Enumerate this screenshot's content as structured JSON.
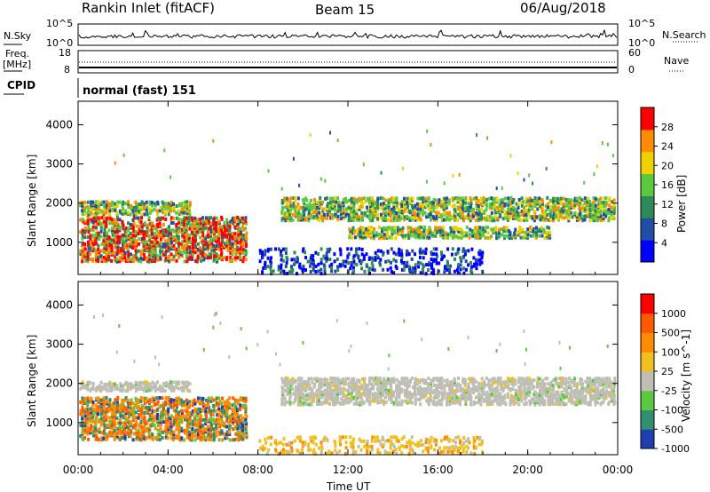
{
  "header": {
    "title": "Rankin Inlet (fitACF)",
    "beam": "Beam 15",
    "date": "06/Aug/2018"
  },
  "noise_panel": {
    "left_label": "N.Sky",
    "right_label": "N.Search",
    "left_ticks": [
      "10^5",
      "10^0"
    ],
    "right_ticks": [
      "10^5",
      "10^0"
    ]
  },
  "freq_panel": {
    "left_label_line1": "Freq.",
    "left_label_line2": "[MHz]",
    "right_label": "Nave",
    "left_ticks": [
      "18",
      "8"
    ],
    "right_ticks": [
      "60",
      "0"
    ]
  },
  "cpid_panel": {
    "label": "CPID",
    "value": "normal (fast) 151"
  },
  "x_axis": {
    "label": "Time UT",
    "ticks": [
      "00:00",
      "04:00",
      "08:00",
      "12:00",
      "16:00",
      "20:00",
      "00:00"
    ]
  },
  "chart_data": [
    {
      "type": "heatmap",
      "quantity": "Power",
      "ylabel": "Slant Range [km]",
      "colorbar_label": "Power [dB]",
      "x_range_hours": [
        0,
        24
      ],
      "ylim_km": [
        180,
        4600
      ],
      "y_ticks": [
        1000,
        2000,
        3000,
        4000
      ],
      "colorbar_ticks": [
        "28",
        "24",
        "20",
        "16",
        "12",
        "8",
        "4"
      ],
      "colorbar_colors": [
        "#0000ff",
        "#1f4ea3",
        "#2e8b57",
        "#5cc840",
        "#f0d000",
        "#ff8c00",
        "#ff0000"
      ],
      "scatter_regions": [
        {
          "t0": 0.0,
          "t1": 7.5,
          "r0": 550,
          "r1": 1700,
          "level": "high"
        },
        {
          "t0": 0.0,
          "t1": 5.0,
          "r0": 1750,
          "r1": 2100,
          "level": "mid"
        },
        {
          "t0": 9.0,
          "t1": 24.0,
          "r0": 1600,
          "r1": 2200,
          "level": "mid"
        },
        {
          "t0": 12.0,
          "t1": 21.0,
          "r0": 1150,
          "r1": 1450,
          "level": "mid"
        },
        {
          "t0": 8.0,
          "t1": 18.0,
          "r0": 200,
          "r1": 900,
          "level": "low"
        }
      ]
    },
    {
      "type": "heatmap",
      "quantity": "Velocity",
      "ylabel": "Slant Range [km]",
      "colorbar_label": "Velocity [m s^-1]",
      "x_range_hours": [
        0,
        24
      ],
      "ylim_km": [
        180,
        4600
      ],
      "y_ticks": [
        1000,
        2000,
        3000,
        4000
      ],
      "colorbar_ticks": [
        "1000",
        "500",
        "100",
        "25",
        "-25",
        "-100",
        "-500",
        "-1000"
      ],
      "colorbar_colors": [
        "#1f3fb0",
        "#2f8f6f",
        "#5cc840",
        "#bebeb4",
        "#f0c020",
        "#ff8c00",
        "#ff5a00",
        "#ff0000"
      ],
      "scatter_regions": [
        {
          "t0": 0.0,
          "t1": 7.5,
          "r0": 600,
          "r1": 1700,
          "level": "mixed"
        },
        {
          "t0": 0.0,
          "t1": 5.0,
          "r0": 1850,
          "r1": 2100,
          "level": "ground"
        },
        {
          "t0": 9.0,
          "t1": 24.0,
          "r0": 1500,
          "r1": 2200,
          "level": "ground"
        },
        {
          "t0": 8.0,
          "t1": 18.0,
          "r0": 200,
          "r1": 700,
          "level": "low-velocity"
        }
      ]
    }
  ]
}
